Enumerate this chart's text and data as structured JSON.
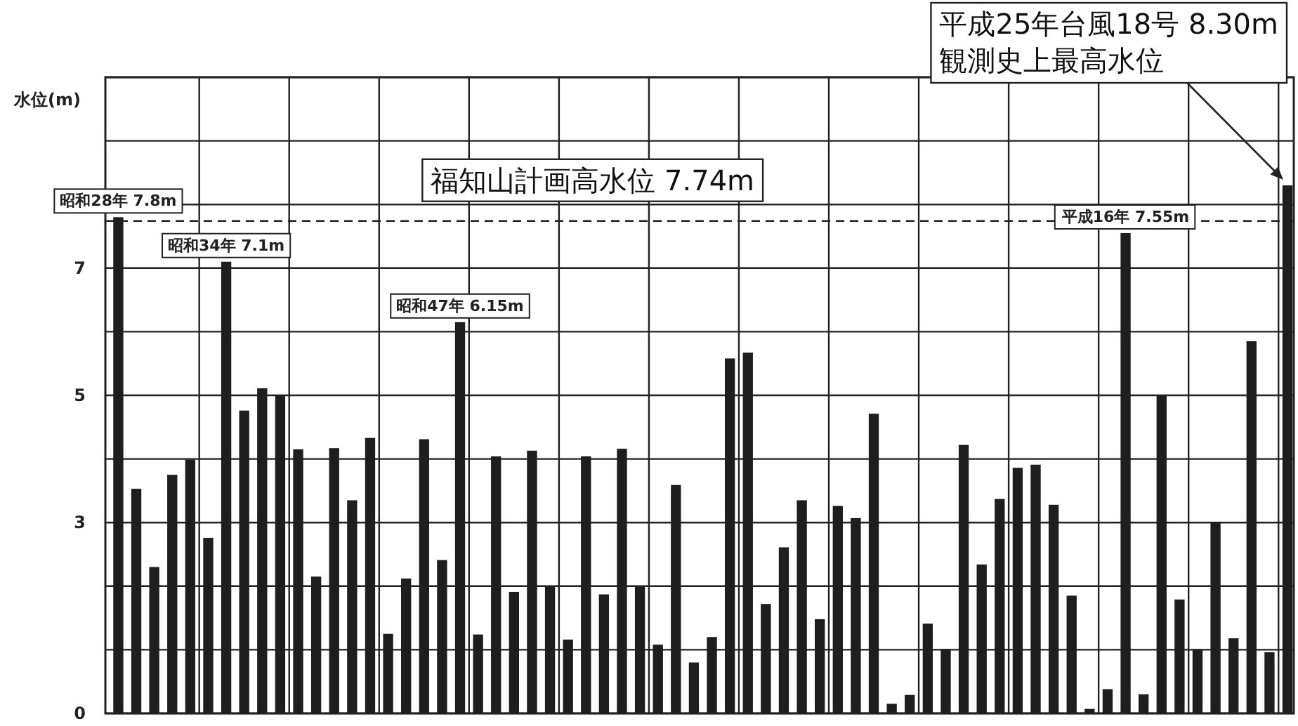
{
  "chart_data": {
    "type": "bar",
    "ylabel": "水位(m)",
    "categories": [
      null,
      null,
      null,
      null,
      null,
      null,
      null,
      null,
      null,
      null,
      null,
      null,
      null,
      null,
      null,
      null,
      null,
      null,
      null,
      null,
      null,
      null,
      null,
      null,
      null,
      null,
      null,
      null,
      null,
      null,
      null,
      null,
      null,
      null,
      null,
      null,
      null,
      null,
      null,
      null,
      null,
      null,
      null,
      null,
      null,
      null,
      null,
      null,
      null,
      null,
      null,
      null,
      null,
      null,
      null,
      null,
      null,
      null,
      null,
      null,
      null,
      null,
      null,
      null,
      null,
      null
    ],
    "values": [
      7.8,
      3.53,
      2.3,
      3.75,
      3.99,
      2.76,
      7.1,
      4.76,
      5.11,
      5.0,
      4.15,
      2.15,
      4.17,
      3.35,
      4.33,
      1.25,
      2.12,
      4.31,
      2.41,
      6.15,
      1.24,
      4.04,
      1.91,
      4.13,
      1.99,
      1.16,
      4.04,
      1.87,
      4.16,
      1.99,
      1.08,
      3.59,
      0.8,
      1.2,
      5.58,
      5.67,
      1.72,
      2.61,
      3.35,
      1.48,
      3.26,
      3.07,
      4.71,
      0.15,
      0.29,
      1.41,
      1.01,
      4.22,
      2.34,
      3.37,
      3.86,
      3.91,
      3.28,
      1.85,
      0.07,
      0.38,
      7.55,
      0.3,
      5.0,
      1.79,
      1.01,
      3.01,
      1.18,
      5.85,
      0.96,
      8.3
    ],
    "value_labels": [
      "昭和28年 7.8m",
      null,
      null,
      null,
      null,
      null,
      "昭和34年 7.1m",
      null,
      null,
      null,
      null,
      null,
      null,
      null,
      null,
      null,
      null,
      null,
      null,
      "昭和47年 6.15m",
      null,
      null,
      null,
      null,
      null,
      null,
      null,
      null,
      null,
      null,
      null,
      null,
      null,
      null,
      null,
      null,
      null,
      null,
      null,
      null,
      null,
      null,
      null,
      null,
      null,
      null,
      null,
      null,
      null,
      null,
      null,
      null,
      null,
      null,
      null,
      null,
      "平成16年 7.55m",
      null,
      null,
      null,
      null,
      null,
      null,
      null,
      null,
      null
    ],
    "color": "#1e1e1e",
    "ylim": [
      0,
      10
    ],
    "yticks": [
      0,
      {
        "value": 1,
        "label": null
      },
      {
        "value": 2,
        "label": null
      },
      3,
      {
        "value": 4,
        "label": null
      },
      5,
      {
        "value": 6,
        "label": null
      },
      7,
      {
        "value": 8,
        "label": null
      },
      {
        "value": 9,
        "label": null
      },
      {
        "value": 10,
        "label": null
      }
    ],
    "grid": true,
    "ref_lines": [
      {
        "axis": "y",
        "value": 7.74,
        "label": "福知山計画高水位 7.74m",
        "line_style": "dashed"
      }
    ],
    "annotations": [
      "平成25年台風18号 8.30m",
      "観測史上最高水位"
    ]
  }
}
